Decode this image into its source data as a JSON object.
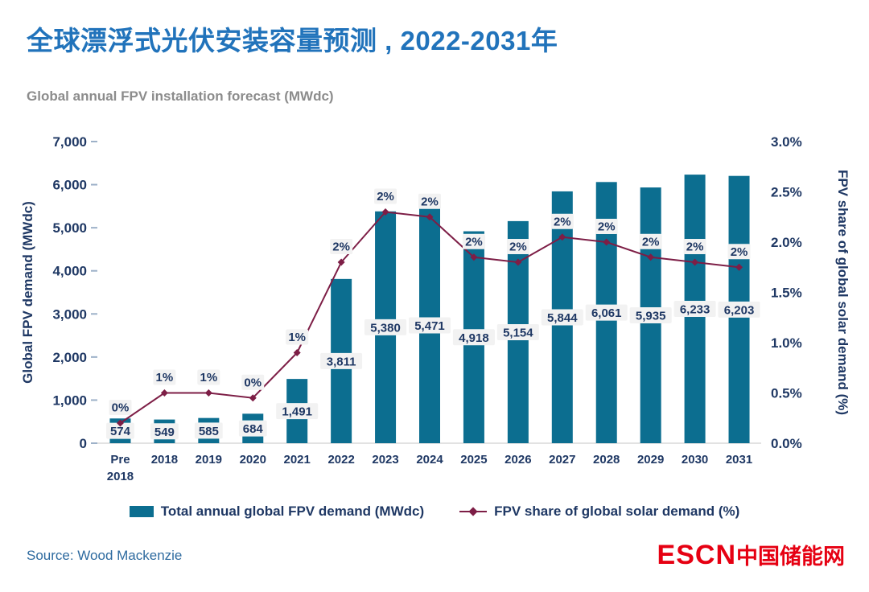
{
  "title": "全球漂浮式光伏安装容量预测 , 2022-2031年",
  "subtitle": "Global annual FPV installation forecast (MWdc)",
  "source": "Source: Wood Mackenzie",
  "logo": {
    "text_en": "ESCN",
    "text_cn": "中国储能网"
  },
  "legend": [
    {
      "type": "bar",
      "label": "Total annual global FPV demand (MWdc)"
    },
    {
      "type": "line",
      "label": "FPV share of global solar demand (%)"
    }
  ],
  "colors": {
    "bar": "#0C6E90",
    "line": "#7D1E46",
    "title": "#2173BB",
    "axis_text": "#1F3864",
    "label_bg": "#F2F2F2",
    "subtitle": "#8C8C8C",
    "source": "#2D6A9F",
    "logo_red": "#E60012"
  },
  "chart_data": {
    "type": "bar+line",
    "title": "Global annual FPV installation forecast (MWdc)",
    "categories": [
      "Pre 2018",
      "2018",
      "2019",
      "2020",
      "2021",
      "2022",
      "2023",
      "2024",
      "2025",
      "2026",
      "2027",
      "2028",
      "2029",
      "2030",
      "2031"
    ],
    "bar_series": {
      "name": "Total annual global FPV demand (MWdc)",
      "values": [
        574,
        549,
        585,
        684,
        1491,
        3811,
        5380,
        5471,
        4918,
        5154,
        5844,
        6061,
        5935,
        6233,
        6203
      ],
      "labels": [
        "574",
        "549",
        "585",
        "684",
        "1,491",
        "3,811",
        "5,380",
        "5,471",
        "4,918",
        "5,154",
        "5,844",
        "6,061",
        "5,935",
        "6,233",
        "6,203"
      ]
    },
    "line_series": {
      "name": "FPV share of global solar demand (%)",
      "values": [
        0.2,
        0.5,
        0.5,
        0.45,
        0.9,
        1.8,
        2.3,
        2.25,
        1.85,
        1.8,
        2.05,
        2.0,
        1.85,
        1.8,
        1.75
      ],
      "labels": [
        "0%",
        "1%",
        "1%",
        "0%",
        "1%",
        "2%",
        "2%",
        "2%",
        "2%",
        "2%",
        "2%",
        "2%",
        "2%",
        "2%",
        "2%"
      ]
    },
    "left_axis": {
      "label": "Global FPV demand (MWdc)",
      "min": 0,
      "max": 7000,
      "step": 1000
    },
    "right_axis": {
      "label": "FPV share of global solar demand (%)",
      "min": 0,
      "max": 3.0,
      "step": 0.5
    },
    "grid": false,
    "legend_position": "bottom"
  }
}
